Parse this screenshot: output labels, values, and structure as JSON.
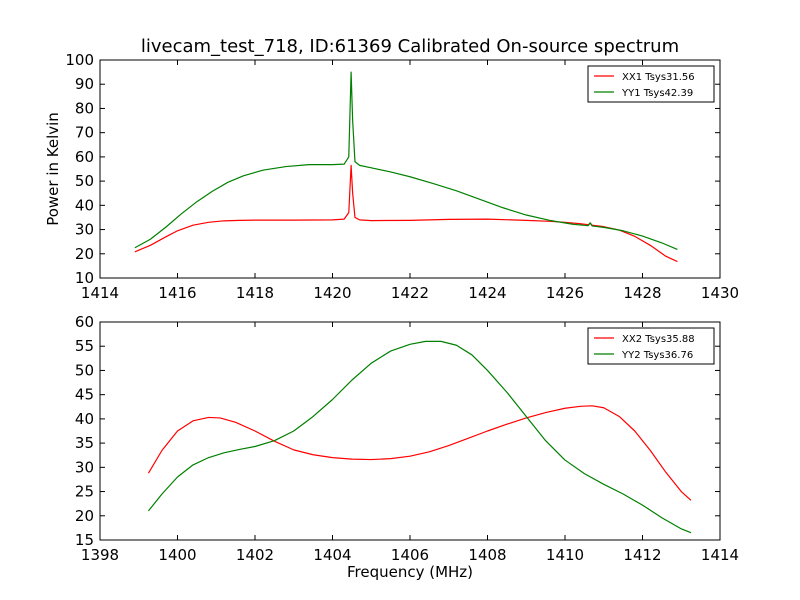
{
  "title": "livecam_test_718, ID:61369 Calibrated On-source spectrum",
  "ylabel": "Power in Kelvin",
  "xlabel": "Frequency (MHz)",
  "colors": {
    "XX": "#ff0000",
    "YY": "#008000"
  },
  "chart_data": [
    {
      "type": "line",
      "title": "livecam_test_718, ID:61369 Calibrated On-source spectrum",
      "ylabel": "Power in Kelvin",
      "xlabel": "",
      "xlim": [
        1414,
        1430
      ],
      "ylim": [
        10,
        100
      ],
      "xticks": [
        1414,
        1416,
        1418,
        1420,
        1422,
        1424,
        1426,
        1428,
        1430
      ],
      "yticks": [
        10,
        20,
        30,
        40,
        50,
        60,
        70,
        80,
        90,
        100
      ],
      "legend_loc": "upper right",
      "series": [
        {
          "name": "XX1 Tsys31.56",
          "color": "#ff0000",
          "x": [
            1414.9,
            1415.3,
            1415.7,
            1416.0,
            1416.4,
            1416.8,
            1417.2,
            1417.6,
            1418.0,
            1419.0,
            1420.0,
            1420.3,
            1420.42,
            1420.48,
            1420.52,
            1420.58,
            1420.7,
            1421.0,
            1422.0,
            1423.0,
            1424.0,
            1425.0,
            1425.6,
            1426.0,
            1426.4,
            1426.6,
            1426.65,
            1426.7,
            1427.0,
            1427.4,
            1427.8,
            1428.2,
            1428.6,
            1428.9
          ],
          "values": [
            20.8,
            23.5,
            27.0,
            29.5,
            31.8,
            33.0,
            33.6,
            33.8,
            33.9,
            33.9,
            34.0,
            34.3,
            37.0,
            56.5,
            45.0,
            35.0,
            34.0,
            33.7,
            33.8,
            34.2,
            34.3,
            33.8,
            33.4,
            33.0,
            32.4,
            32.0,
            32.6,
            31.8,
            31.2,
            29.8,
            27.2,
            23.5,
            19.0,
            16.8
          ]
        },
        {
          "name": "YY1 Tsys42.39",
          "color": "#008000",
          "x": [
            1414.9,
            1415.3,
            1415.7,
            1416.1,
            1416.5,
            1416.9,
            1417.3,
            1417.7,
            1418.2,
            1418.8,
            1419.4,
            1420.0,
            1420.3,
            1420.42,
            1420.48,
            1420.52,
            1420.58,
            1420.7,
            1421.0,
            1421.5,
            1422.0,
            1422.6,
            1423.2,
            1423.8,
            1424.4,
            1425.0,
            1425.6,
            1426.2,
            1426.6,
            1426.65,
            1426.7,
            1427.0,
            1427.5,
            1428.0,
            1428.5,
            1428.9
          ],
          "values": [
            22.5,
            26.0,
            31.0,
            36.5,
            41.5,
            45.8,
            49.5,
            52.2,
            54.5,
            56.0,
            56.8,
            56.8,
            57.0,
            60.0,
            95.0,
            75.0,
            58.0,
            56.5,
            55.5,
            53.8,
            51.8,
            49.0,
            46.0,
            42.5,
            39.0,
            36.0,
            33.8,
            32.2,
            31.6,
            32.8,
            31.5,
            30.9,
            29.5,
            27.3,
            24.5,
            21.8
          ]
        }
      ]
    },
    {
      "type": "line",
      "title": "",
      "ylabel": "",
      "xlabel": "Frequency (MHz)",
      "xlim": [
        1398,
        1414
      ],
      "ylim": [
        15,
        60
      ],
      "xticks": [
        1398,
        1400,
        1402,
        1404,
        1406,
        1408,
        1410,
        1412,
        1414
      ],
      "yticks": [
        15,
        20,
        25,
        30,
        35,
        40,
        45,
        50,
        55,
        60
      ],
      "legend_loc": "upper right",
      "series": [
        {
          "name": "XX2 Tsys35.88",
          "color": "#ff0000",
          "x": [
            1399.25,
            1399.6,
            1400.0,
            1400.4,
            1400.8,
            1401.1,
            1401.5,
            1402.0,
            1402.5,
            1403.0,
            1403.5,
            1404.0,
            1404.5,
            1405.0,
            1405.5,
            1406.0,
            1406.5,
            1407.0,
            1407.5,
            1408.0,
            1408.5,
            1409.0,
            1409.5,
            1410.0,
            1410.4,
            1410.7,
            1411.0,
            1411.4,
            1411.8,
            1412.2,
            1412.6,
            1413.0,
            1413.25
          ],
          "values": [
            28.8,
            33.5,
            37.5,
            39.6,
            40.3,
            40.2,
            39.3,
            37.5,
            35.4,
            33.6,
            32.6,
            32.0,
            31.7,
            31.6,
            31.8,
            32.3,
            33.2,
            34.5,
            36.0,
            37.5,
            38.9,
            40.2,
            41.3,
            42.2,
            42.6,
            42.7,
            42.3,
            40.5,
            37.5,
            33.5,
            29.0,
            25.0,
            23.2
          ]
        },
        {
          "name": "YY2 Tsys36.76",
          "color": "#008000",
          "x": [
            1399.25,
            1399.6,
            1400.0,
            1400.4,
            1400.8,
            1401.2,
            1401.6,
            1402.0,
            1402.5,
            1403.0,
            1403.5,
            1404.0,
            1404.5,
            1405.0,
            1405.5,
            1406.0,
            1406.4,
            1406.8,
            1407.2,
            1407.6,
            1408.0,
            1408.5,
            1409.0,
            1409.5,
            1410.0,
            1410.5,
            1411.0,
            1411.5,
            1412.0,
            1412.5,
            1413.0,
            1413.25
          ],
          "values": [
            21.0,
            24.5,
            28.0,
            30.5,
            32.0,
            33.0,
            33.7,
            34.3,
            35.5,
            37.5,
            40.5,
            44.0,
            48.0,
            51.5,
            54.0,
            55.4,
            56.0,
            56.0,
            55.2,
            53.2,
            50.0,
            45.5,
            40.5,
            35.5,
            31.5,
            28.7,
            26.5,
            24.5,
            22.2,
            19.6,
            17.3,
            16.5
          ]
        }
      ]
    }
  ]
}
